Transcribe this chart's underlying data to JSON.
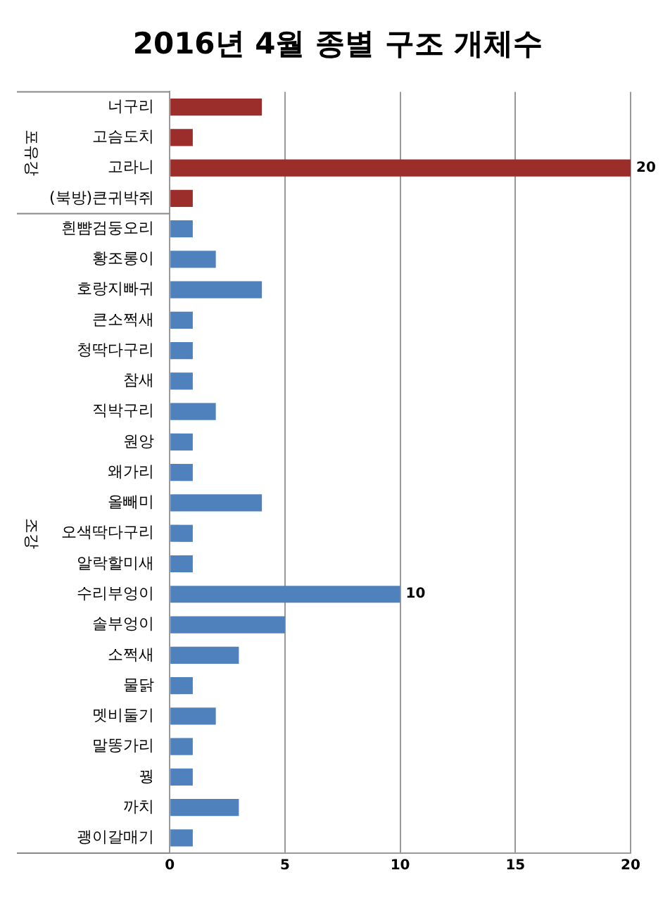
{
  "chart_data": {
    "type": "bar",
    "orientation": "horizontal",
    "title": "2016년 4월 종별 구조 개체수",
    "categories": [
      "너구리",
      "고슴도치",
      "고라니",
      "(북방)큰귀박쥐",
      "흰뺨검둥오리",
      "황조롱이",
      "호랑지빠귀",
      "큰소쩍새",
      "청딱다구리",
      "참새",
      "직박구리",
      "원앙",
      "왜가리",
      "올빼미",
      "오색딱다구리",
      "알락할미새",
      "수리부엉이",
      "솔부엉이",
      "소쩍새",
      "물닭",
      "멧비둘기",
      "말똥가리",
      "꿩",
      "까치",
      "괭이갈매기"
    ],
    "values": [
      4,
      1,
      20,
      1,
      1,
      2,
      4,
      1,
      1,
      1,
      2,
      1,
      1,
      4,
      1,
      1,
      10,
      5,
      3,
      1,
      2,
      1,
      1,
      3,
      1
    ],
    "colors": [
      "#9b2d2a",
      "#9b2d2a",
      "#9b2d2a",
      "#9b2d2a",
      "#4f81bd",
      "#4f81bd",
      "#4f81bd",
      "#4f81bd",
      "#4f81bd",
      "#4f81bd",
      "#4f81bd",
      "#4f81bd",
      "#4f81bd",
      "#4f81bd",
      "#4f81bd",
      "#4f81bd",
      "#4f81bd",
      "#4f81bd",
      "#4f81bd",
      "#4f81bd",
      "#4f81bd",
      "#4f81bd",
      "#4f81bd",
      "#4f81bd",
      "#4f81bd"
    ],
    "value_labels": [
      null,
      null,
      "20",
      null,
      null,
      null,
      null,
      null,
      null,
      null,
      null,
      null,
      null,
      null,
      null,
      null,
      "10",
      null,
      null,
      null,
      null,
      null,
      null,
      null,
      null
    ],
    "annotations": [
      "포유강",
      "조강"
    ],
    "xlim": [
      0,
      20
    ],
    "xticks": [
      0,
      5,
      10,
      15,
      20
    ],
    "grid": "x",
    "legend": false
  }
}
